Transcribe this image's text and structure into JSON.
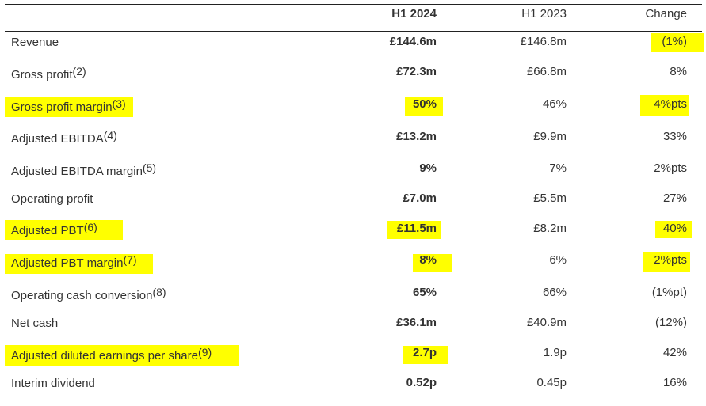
{
  "header": {
    "h1_2024": "H1 2024",
    "h1_2023": "H1 2023",
    "change": "Change"
  },
  "highlight_color": "#ffff00",
  "rows": [
    {
      "label": "Revenue",
      "note": "",
      "h1_2024": "£144.6m",
      "h1_2023": "£146.8m",
      "change": "(1%)"
    },
    {
      "label": "Gross profit",
      "note": "(2)",
      "h1_2024": "£72.3m",
      "h1_2023": "£66.8m",
      "change": "8%"
    },
    {
      "label": "Gross profit margin",
      "note": "(3)",
      "h1_2024": "50%",
      "h1_2023": "46%",
      "change": "4%pts"
    },
    {
      "label": "Adjusted EBITDA",
      "note": "(4)",
      "h1_2024": "£13.2m",
      "h1_2023": "£9.9m",
      "change": "33%"
    },
    {
      "label": "Adjusted EBITDA margin",
      "note": "(5)",
      "h1_2024": "9%",
      "h1_2023": "7%",
      "change": "2%pts"
    },
    {
      "label": "Operating profit",
      "note": "",
      "h1_2024": "£7.0m",
      "h1_2023": "£5.5m",
      "change": "27%"
    },
    {
      "label": "Adjusted PBT",
      "note": "(6)",
      "h1_2024": "£11.5m",
      "h1_2023": "£8.2m",
      "change": "40%"
    },
    {
      "label": "Adjusted PBT margin",
      "note": "(7)",
      "h1_2024": "8%",
      "h1_2023": "6%",
      "change": "2%pts"
    },
    {
      "label": "Operating cash conversion",
      "note": "(8)",
      "h1_2024": "65%",
      "h1_2023": "66%",
      "change": "(1%pt)"
    },
    {
      "label": "Net cash",
      "note": "",
      "h1_2024": "£36.1m",
      "h1_2023": "£40.9m",
      "change": "(12%)"
    },
    {
      "label": "Adjusted diluted earnings per share",
      "note": "(9)",
      "h1_2024": "2.7p",
      "h1_2023": "1.9p",
      "change": "42%"
    },
    {
      "label": "Interim dividend",
      "note": "",
      "h1_2024": "0.52p",
      "h1_2023": "0.45p",
      "change": "16%"
    }
  ]
}
